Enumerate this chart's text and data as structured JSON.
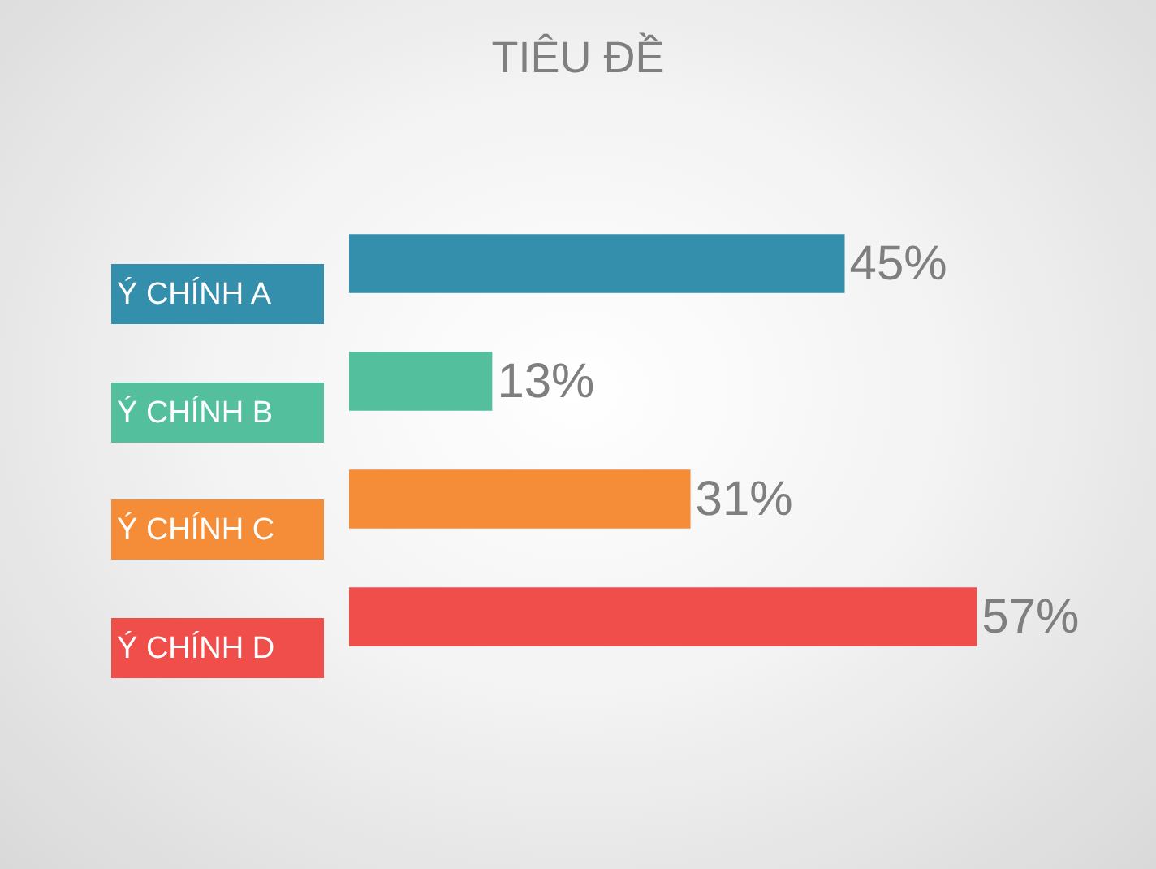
{
  "chart_data": {
    "type": "bar",
    "title": "TIÊU ĐỀ",
    "orientation": "horizontal",
    "categories": [
      "Ý CHÍNH A",
      "Ý CHÍNH B",
      "Ý CHÍNH C",
      "Ý CHÍNH D"
    ],
    "values": [
      45,
      13,
      31,
      57
    ],
    "colors": [
      "#348fac",
      "#53bf9c",
      "#f58d38",
      "#f04e4b"
    ],
    "value_labels": [
      "45%",
      "13%",
      "31%",
      "57%"
    ],
    "tick_labels": "y"
  }
}
